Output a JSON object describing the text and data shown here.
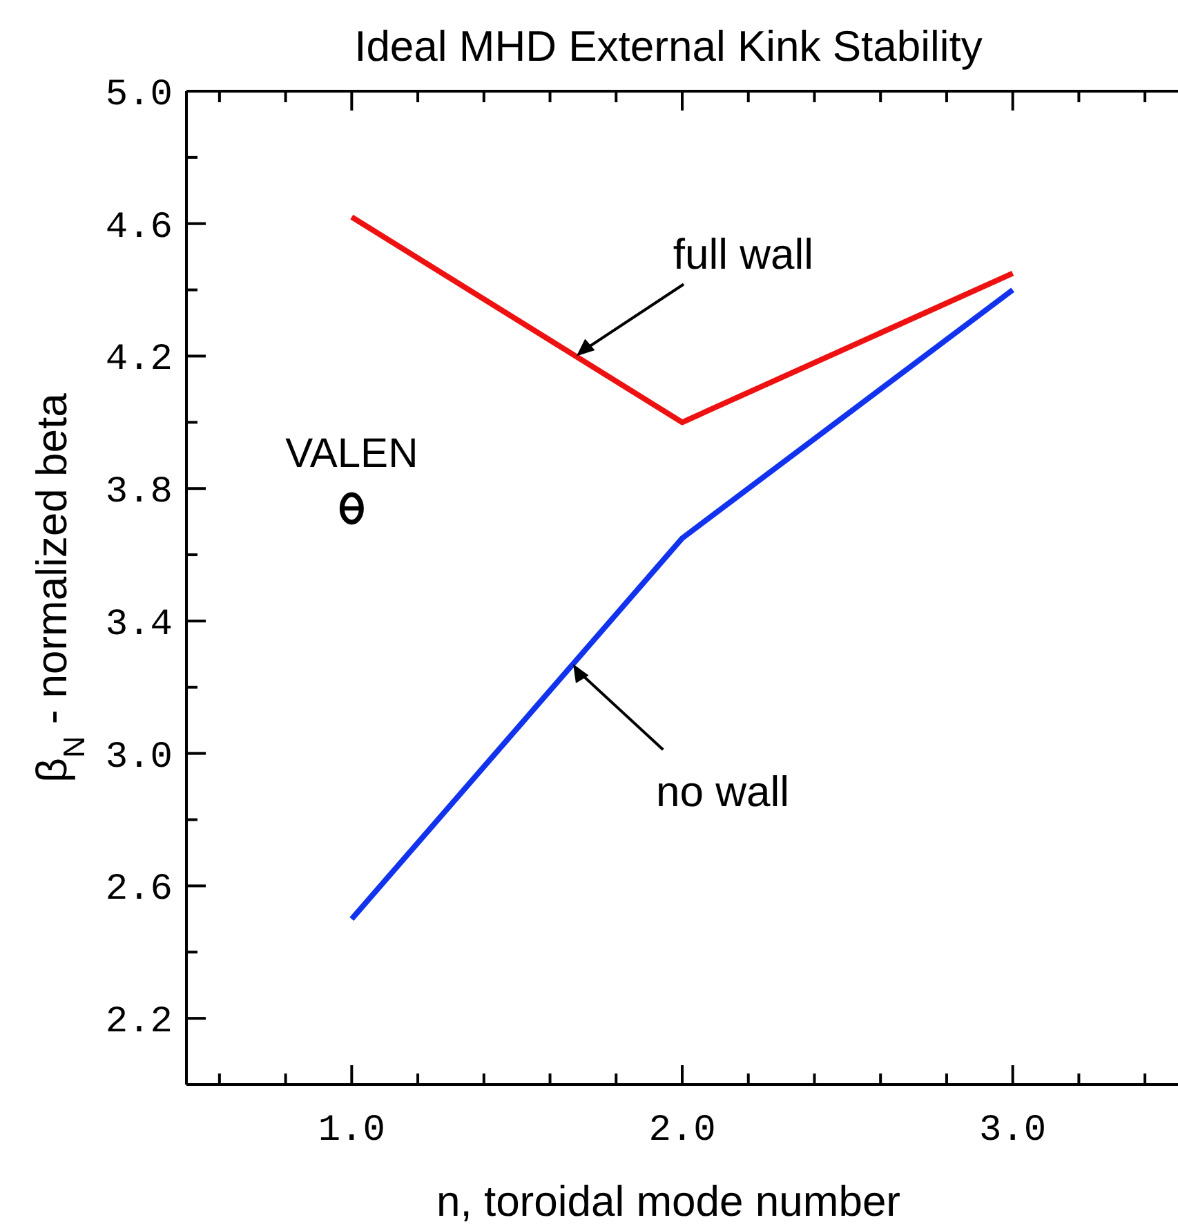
{
  "chart_data": {
    "type": "line",
    "title": "Ideal MHD External Kink Stability",
    "xlabel": "n, toroidal mode number",
    "ylabel": "β$_{N}$ - normalized beta",
    "x": [
      1,
      2,
      3
    ],
    "series": [
      {
        "color": "#ee1111",
        "values": [
          4.62,
          4.0,
          4.45
        ]
      },
      {
        "color": "#1133ee",
        "values": [
          2.5,
          3.65,
          4.4
        ]
      },
      {
        "name": "VALEN",
        "type": "scatter",
        "color": "#000000",
        "x": [
          1
        ],
        "values": [
          3.74
        ],
        "marker": "circle"
      }
    ],
    "annotations": [
      {
        "text": "full wall",
        "x": 1.68,
        "y": 4.2
      },
      {
        "text": "no wall",
        "x": 1.67,
        "y": 3.27
      }
    ],
    "xlim": [
      0.5,
      3.5
    ],
    "ylim": [
      2.0,
      5.0
    ],
    "xticks": [
      {
        "value": 0.6,
        "label": null
      },
      {
        "value": 0.8,
        "label": null
      },
      {
        "value": 1,
        "label": "1.0"
      },
      {
        "value": 1.2,
        "label": null
      },
      {
        "value": 1.4,
        "label": null
      },
      {
        "value": 1.6,
        "label": null
      },
      {
        "value": 1.8,
        "label": null
      },
      {
        "value": 2,
        "label": "2.0"
      },
      {
        "value": 2.2,
        "label": null
      },
      {
        "value": 2.4,
        "label": null
      },
      {
        "value": 2.6,
        "label": null
      },
      {
        "value": 2.8,
        "label": null
      },
      {
        "value": 3,
        "label": "3.0"
      },
      {
        "value": 3.2,
        "label": null
      },
      {
        "value": 3.4,
        "label": null
      }
    ],
    "yticks": [
      {
        "value": 2.2,
        "label": "2.2"
      },
      {
        "value": 2.4,
        "label": null
      },
      {
        "value": 2.6,
        "label": "2.6"
      },
      {
        "value": 2.8,
        "label": null
      },
      {
        "value": 3.0,
        "label": "3.0"
      },
      {
        "value": 3.2,
        "label": null
      },
      {
        "value": 3.4,
        "label": "3.4"
      },
      {
        "value": 3.6,
        "label": null
      },
      {
        "value": 3.8,
        "label": "3.8"
      },
      {
        "value": 4.0,
        "label": null
      },
      {
        "value": 4.2,
        "label": "4.2"
      },
      {
        "value": 4.4,
        "label": null
      },
      {
        "value": 4.6,
        "label": "4.6"
      },
      {
        "value": 4.8,
        "label": null
      },
      {
        "value": 5.0,
        "label": "5.0"
      }
    ],
    "line_style": "solid"
  }
}
